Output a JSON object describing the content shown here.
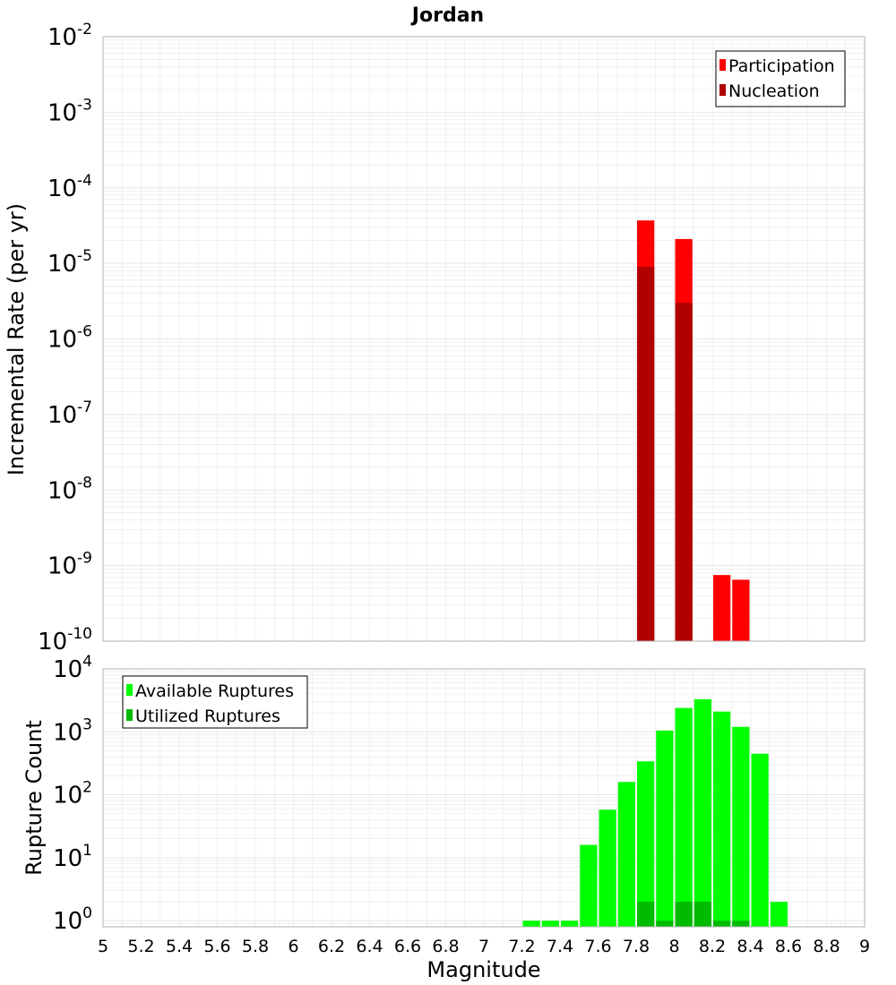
{
  "title": "Jordan",
  "colors": {
    "participation": "#ff0000",
    "nucleation": "#b00000",
    "available": "#00ff00",
    "utilized": "#00bb00",
    "grid": "#e6e6e6",
    "frame": "#b0b0b0"
  },
  "chart_data": [
    {
      "type": "bar",
      "ylabel": "Incremental Rate (per yr)",
      "xlabel": "",
      "yscale": "log",
      "ylim": [
        1e-10,
        0.01
      ],
      "xlim": [
        5,
        9
      ],
      "grid": true,
      "legend_position": "top-right",
      "legend": [
        "Participation",
        "Nucleation"
      ],
      "y_tick_exponents": [
        "-2",
        "-3",
        "-4",
        "-5",
        "-6",
        "-7",
        "-8",
        "-9",
        "-10"
      ],
      "bin_width": 0.1,
      "series": [
        {
          "name": "Participation",
          "x": [
            7.85,
            8.05,
            8.25,
            8.35
          ],
          "values": [
            3.7e-05,
            2.1e-05,
            7.5e-10,
            6.5e-10
          ]
        },
        {
          "name": "Nucleation",
          "x": [
            7.85,
            8.05
          ],
          "values": [
            9e-06,
            3e-06
          ]
        }
      ]
    },
    {
      "type": "bar",
      "ylabel": "Rupture Count",
      "xlabel": "Magnitude",
      "yscale": "log",
      "ylim": [
        0.8,
        10000
      ],
      "xlim": [
        5,
        9
      ],
      "grid": true,
      "legend_position": "top-left",
      "legend": [
        "Available Ruptures",
        "Utilized Ruptures"
      ],
      "y_tick_exponents": [
        "4",
        "3",
        "2",
        "1",
        "0"
      ],
      "x_tick_labels": [
        "5",
        "5.2",
        "5.4",
        "5.6",
        "5.8",
        "6",
        "6.2",
        "6.4",
        "6.6",
        "6.8",
        "7",
        "7.2",
        "7.4",
        "7.6",
        "7.8",
        "8",
        "8.2",
        "8.4",
        "8.6",
        "8.8",
        "9"
      ],
      "bin_width": 0.1,
      "series": [
        {
          "name": "Available Ruptures",
          "x": [
            7.25,
            7.35,
            7.45,
            7.55,
            7.65,
            7.75,
            7.85,
            7.95,
            8.05,
            8.15,
            8.25,
            8.35,
            8.45,
            8.55
          ],
          "values": [
            1,
            1,
            1,
            16,
            58,
            160,
            340,
            1050,
            2400,
            3300,
            2100,
            1200,
            450,
            2
          ]
        },
        {
          "name": "Utilized Ruptures",
          "x": [
            7.85,
            7.95,
            8.05,
            8.15,
            8.25,
            8.35
          ],
          "values": [
            2,
            1,
            2,
            2,
            1,
            1
          ]
        }
      ]
    }
  ]
}
